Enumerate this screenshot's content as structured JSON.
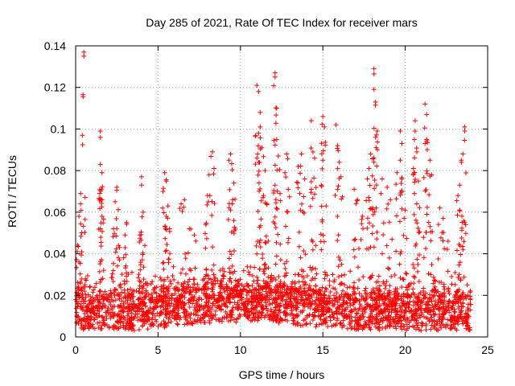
{
  "chart_data": {
    "type": "scatter",
    "title": "Day 285 of 2021, Rate Of TEC Index for receiver mars",
    "xlabel": "GPS time / hours",
    "ylabel": "ROTI / TECUs",
    "xlim": [
      0,
      25
    ],
    "ylim": [
      0,
      0.14
    ],
    "x_ticks": [
      0,
      5,
      10,
      15,
      20,
      25
    ],
    "x_tick_labels": [
      "0",
      "5",
      "10",
      "15",
      "20",
      "25"
    ],
    "y_ticks": [
      0,
      0.02,
      0.04,
      0.06,
      0.08,
      0.1,
      0.12,
      0.14
    ],
    "y_tick_labels": [
      "0",
      "0.02",
      "0.04",
      "0.06",
      "0.08",
      "0.1",
      "0.12",
      "0.14"
    ],
    "grid": true,
    "marker": "+",
    "marker_color": "#ff0000",
    "series": [
      {
        "name": "ROTI",
        "points": [
          [
            0.5,
            0.137
          ],
          [
            0.5,
            0.135
          ],
          [
            0.3,
            0.069
          ],
          [
            0.3,
            0.064
          ],
          [
            0.2,
            0.058
          ],
          [
            0.1,
            0.041
          ],
          [
            0.2,
            0.036
          ],
          [
            1.5,
            0.099
          ],
          [
            1.5,
            0.096
          ],
          [
            1.5,
            0.083
          ],
          [
            1.6,
            0.079
          ],
          [
            1.6,
            0.066
          ],
          [
            1.6,
            0.058
          ],
          [
            1.5,
            0.052
          ],
          [
            2.5,
            0.072
          ],
          [
            2.4,
            0.065
          ],
          [
            2.3,
            0.052
          ],
          [
            2.6,
            0.044
          ],
          [
            3.1,
            0.055
          ],
          [
            3.0,
            0.049
          ],
          [
            4.0,
            0.077
          ],
          [
            4.0,
            0.073
          ],
          [
            4.1,
            0.06
          ],
          [
            3.9,
            0.049
          ],
          [
            4.2,
            0.044
          ],
          [
            5.4,
            0.079
          ],
          [
            5.5,
            0.075
          ],
          [
            5.3,
            0.07
          ],
          [
            5.6,
            0.063
          ],
          [
            5.5,
            0.058
          ],
          [
            5.7,
            0.052
          ],
          [
            6.6,
            0.066
          ],
          [
            6.4,
            0.064
          ],
          [
            6.9,
            0.052
          ],
          [
            7.2,
            0.049
          ],
          [
            8.3,
            0.089
          ],
          [
            8.4,
            0.081
          ],
          [
            8.1,
            0.078
          ],
          [
            8.0,
            0.068
          ],
          [
            7.9,
            0.054
          ],
          [
            9.4,
            0.088
          ],
          [
            9.3,
            0.085
          ],
          [
            9.6,
            0.074
          ],
          [
            9.5,
            0.064
          ],
          [
            9.4,
            0.061
          ],
          [
            9.6,
            0.056
          ],
          [
            11.0,
            0.121
          ],
          [
            11.1,
            0.118
          ],
          [
            11.2,
            0.108
          ],
          [
            11.2,
            0.101
          ],
          [
            11.1,
            0.098
          ],
          [
            11.3,
            0.091
          ],
          [
            11.0,
            0.086
          ],
          [
            11.5,
            0.08
          ],
          [
            11.4,
            0.068
          ],
          [
            11.6,
            0.064
          ],
          [
            12.1,
            0.127
          ],
          [
            12.1,
            0.125
          ],
          [
            12.2,
            0.11
          ],
          [
            12.2,
            0.095
          ],
          [
            12.3,
            0.087
          ],
          [
            12.1,
            0.073
          ],
          [
            12.4,
            0.069
          ],
          [
            12.8,
            0.088
          ],
          [
            12.7,
            0.079
          ],
          [
            12.9,
            0.071
          ],
          [
            13.7,
            0.088
          ],
          [
            13.5,
            0.082
          ],
          [
            13.9,
            0.076
          ],
          [
            13.6,
            0.069
          ],
          [
            14.3,
            0.104
          ],
          [
            14.4,
            0.089
          ],
          [
            14.5,
            0.086
          ],
          [
            14.3,
            0.071
          ],
          [
            15.0,
            0.106
          ],
          [
            15.1,
            0.101
          ],
          [
            15.0,
            0.085
          ],
          [
            14.9,
            0.073
          ],
          [
            15.2,
            0.063
          ],
          [
            15.8,
            0.102
          ],
          [
            15.9,
            0.092
          ],
          [
            16.0,
            0.084
          ],
          [
            16.1,
            0.077
          ],
          [
            16.9,
            0.071
          ],
          [
            17.1,
            0.066
          ],
          [
            17.4,
            0.058
          ],
          [
            17.9,
            0.088
          ],
          [
            17.8,
            0.081
          ],
          [
            17.7,
            0.076
          ],
          [
            18.1,
            0.129
          ],
          [
            18.1,
            0.119
          ],
          [
            18.2,
            0.113
          ],
          [
            18.3,
            0.099
          ],
          [
            18.2,
            0.096
          ],
          [
            18.1,
            0.084
          ],
          [
            18.6,
            0.076
          ],
          [
            18.9,
            0.072
          ],
          [
            19.1,
            0.066
          ],
          [
            19.7,
            0.099
          ],
          [
            19.8,
            0.093
          ],
          [
            19.7,
            0.085
          ],
          [
            19.5,
            0.079
          ],
          [
            20.0,
            0.061
          ],
          [
            20.6,
            0.104
          ],
          [
            20.6,
            0.099
          ],
          [
            20.7,
            0.089
          ],
          [
            20.5,
            0.081
          ],
          [
            20.8,
            0.075
          ],
          [
            20.7,
            0.064
          ],
          [
            21.2,
            0.112
          ],
          [
            21.3,
            0.107
          ],
          [
            21.3,
            0.095
          ],
          [
            21.2,
            0.093
          ],
          [
            21.5,
            0.085
          ],
          [
            21.6,
            0.078
          ],
          [
            22.1,
            0.062
          ],
          [
            22.3,
            0.057
          ],
          [
            22.6,
            0.046
          ],
          [
            23.6,
            0.101
          ],
          [
            23.5,
            0.088
          ],
          [
            23.4,
            0.085
          ],
          [
            23.3,
            0.073
          ],
          [
            23.2,
            0.068
          ],
          [
            23.3,
            0.061
          ],
          [
            23.6,
            0.055
          ]
        ]
      }
    ]
  }
}
